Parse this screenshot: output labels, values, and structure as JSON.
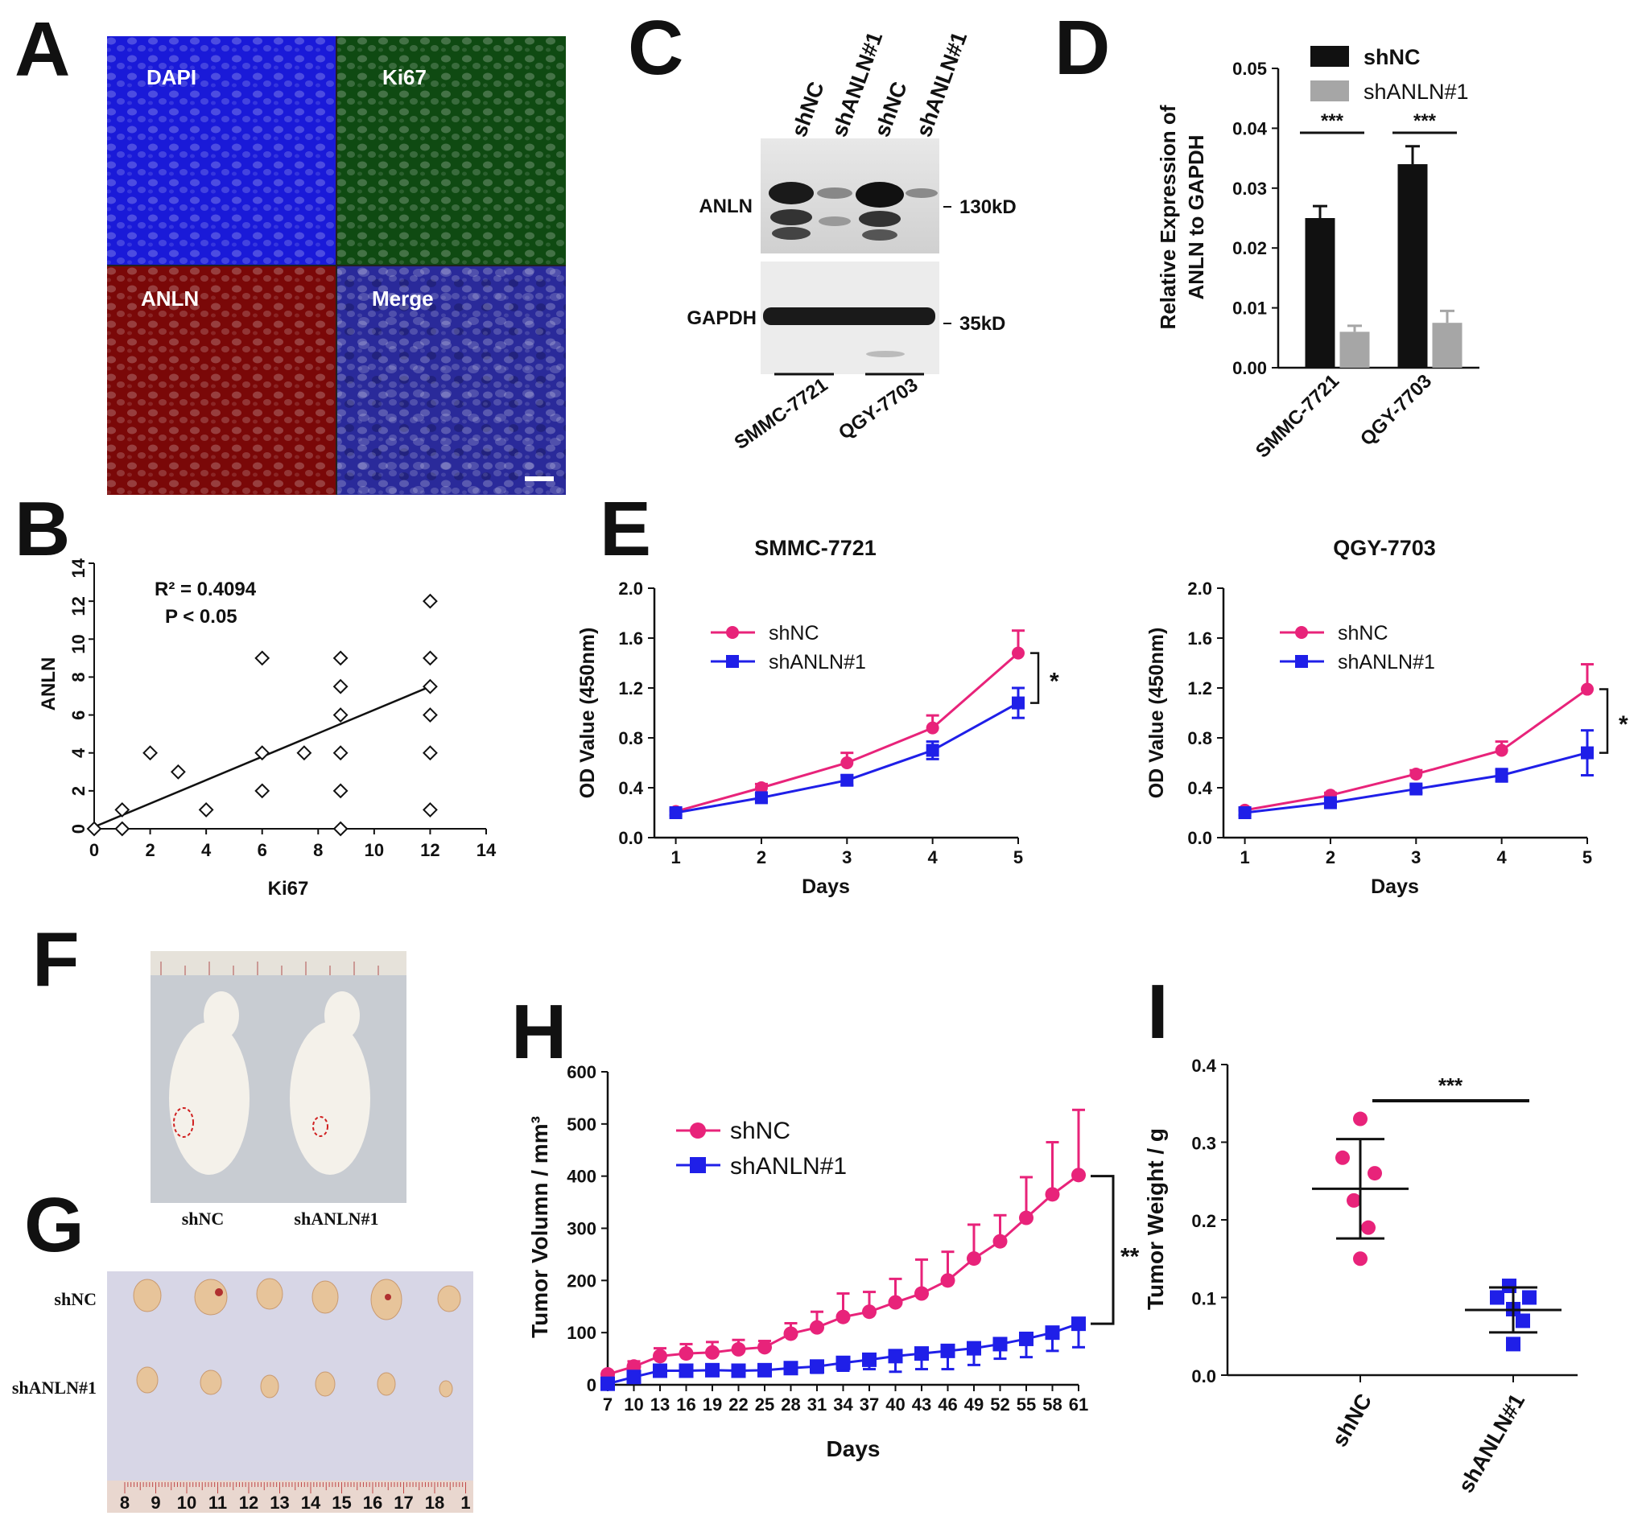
{
  "panel_labels": {
    "a": "A",
    "b": "B",
    "c": "C",
    "d": "D",
    "e": "E",
    "f": "F",
    "g": "G",
    "h": "H",
    "i": "I"
  },
  "colors": {
    "pink": "#e8237a",
    "blue": "#1f1fe8",
    "black": "#111111",
    "gray": "#a6a6a6",
    "dapi": "#1a1ad8",
    "ki67": "#1fa01f",
    "anln": "#c81414"
  },
  "panel_a": {
    "quadrants": [
      "DAPI",
      "Ki67",
      "ANLN",
      "Merge"
    ],
    "scale_bar": true
  },
  "panel_c": {
    "lanes": [
      "shNC",
      "shANLN#1",
      "shNC",
      "shANLN#1"
    ],
    "bands": [
      "ANLN",
      "GAPDH"
    ],
    "markers": [
      "130kD",
      "35kD"
    ],
    "cell_lines": [
      "SMMC-7721",
      "QGY-7703"
    ]
  },
  "panel_f": {
    "labels": [
      "shNC",
      "shANLN#1"
    ]
  },
  "panel_g": {
    "rows": [
      "shNC",
      "shANLN#1"
    ],
    "ruler_numbers": [
      "8",
      "9",
      "10",
      "11",
      "12",
      "13",
      "14",
      "15",
      "16",
      "17",
      "18",
      "1"
    ]
  },
  "chart_data": [
    {
      "id": "B",
      "type": "scatter",
      "xlabel": "Ki67",
      "ylabel": "ANLN",
      "xlim": [
        0,
        14
      ],
      "ylim": [
        0,
        14
      ],
      "xticks": [
        0,
        2,
        4,
        6,
        8,
        10,
        12,
        14
      ],
      "yticks": [
        0,
        2,
        4,
        6,
        8,
        10,
        12,
        14
      ],
      "points": [
        [
          0,
          0
        ],
        [
          1,
          0
        ],
        [
          1,
          1
        ],
        [
          2,
          4
        ],
        [
          3,
          3
        ],
        [
          4,
          1
        ],
        [
          6,
          9
        ],
        [
          6,
          4
        ],
        [
          6,
          2
        ],
        [
          7.5,
          4
        ],
        [
          8.8,
          9
        ],
        [
          8.8,
          7.5
        ],
        [
          8.8,
          6
        ],
        [
          8.8,
          4
        ],
        [
          8.8,
          2
        ],
        [
          8.8,
          0
        ],
        [
          12,
          12
        ],
        [
          12,
          9
        ],
        [
          12,
          7.5
        ],
        [
          12,
          6
        ],
        [
          12,
          4
        ],
        [
          12,
          1
        ]
      ],
      "fit": {
        "x": [
          0,
          12
        ],
        "y": [
          0.1,
          7.5
        ]
      },
      "annotations": [
        "R² = 0.4094",
        "P < 0.05"
      ]
    },
    {
      "id": "D",
      "type": "bar",
      "ylabel_lines": [
        "Relative Expression of",
        "ANLN to GAPDH"
      ],
      "categories": [
        "SMMC-7721",
        "QGY-7703"
      ],
      "series": [
        {
          "name": "shNC",
          "values": [
            0.025,
            0.034
          ],
          "errors": [
            0.002,
            0.003
          ]
        },
        {
          "name": "shANLN#1",
          "values": [
            0.006,
            0.0075
          ],
          "errors": [
            0.001,
            0.002
          ]
        }
      ],
      "ylim": [
        0,
        0.05
      ],
      "yticks": [
        "0.00",
        "0.01",
        "0.02",
        "0.03",
        "0.04",
        "0.05"
      ],
      "significance": [
        "***",
        "***"
      ]
    },
    {
      "id": "E1",
      "type": "line",
      "title": "SMMC-7721",
      "xlabel": "Days",
      "ylabel": "OD Value (450nm)",
      "x": [
        1,
        2,
        3,
        4,
        5
      ],
      "xlim": [
        0.75,
        5
      ],
      "ylim": [
        0,
        2.0
      ],
      "yticks": [
        "0.0",
        "0.4",
        "0.8",
        "1.2",
        "1.6",
        "2.0"
      ],
      "series": [
        {
          "name": "shNC",
          "values": [
            0.21,
            0.4,
            0.6,
            0.88,
            1.48
          ],
          "errors": [
            0.02,
            0.03,
            0.08,
            0.1,
            0.18
          ]
        },
        {
          "name": "shANLN#1",
          "values": [
            0.2,
            0.32,
            0.46,
            0.7,
            1.08
          ],
          "errors": [
            0.02,
            0.03,
            0.04,
            0.07,
            0.12
          ]
        }
      ],
      "significance": "*"
    },
    {
      "id": "E2",
      "type": "line",
      "title": "QGY-7703",
      "xlabel": "Days",
      "ylabel": "OD Value (450nm)",
      "x": [
        1,
        2,
        3,
        4,
        5
      ],
      "xlim": [
        0.75,
        5
      ],
      "ylim": [
        0,
        2.0
      ],
      "yticks": [
        "0.0",
        "0.4",
        "0.8",
        "1.2",
        "1.6",
        "2.0"
      ],
      "series": [
        {
          "name": "shNC",
          "values": [
            0.22,
            0.34,
            0.51,
            0.7,
            1.19
          ],
          "errors": [
            0.02,
            0.02,
            0.03,
            0.07,
            0.2
          ]
        },
        {
          "name": "shANLN#1",
          "values": [
            0.2,
            0.28,
            0.39,
            0.5,
            0.68
          ],
          "errors": [
            0.02,
            0.02,
            0.03,
            0.05,
            0.18
          ]
        }
      ],
      "significance": "*"
    },
    {
      "id": "H",
      "type": "line",
      "xlabel": "Days",
      "ylabel": "Tumor Volumn / mm³",
      "x": [
        7,
        10,
        13,
        16,
        19,
        22,
        25,
        28,
        31,
        34,
        37,
        40,
        43,
        46,
        49,
        52,
        55,
        58,
        61
      ],
      "ylim": [
        0,
        600
      ],
      "yticks": [
        0,
        100,
        200,
        300,
        400,
        500,
        600
      ],
      "series": [
        {
          "name": "shNC",
          "values": [
            20,
            35,
            55,
            60,
            62,
            68,
            72,
            98,
            110,
            130,
            140,
            158,
            175,
            200,
            242,
            275,
            320,
            365,
            402
          ],
          "errors": [
            5,
            10,
            15,
            18,
            20,
            18,
            12,
            20,
            30,
            45,
            38,
            45,
            65,
            55,
            65,
            50,
            78,
            100,
            125
          ]
        },
        {
          "name": "shANLN#1",
          "values": [
            2,
            15,
            27,
            27,
            28,
            27,
            28,
            32,
            35,
            42,
            48,
            55,
            60,
            65,
            70,
            78,
            88,
            100,
            117
          ],
          "errors": [
            3,
            5,
            8,
            8,
            8,
            8,
            10,
            10,
            12,
            15,
            18,
            30,
            30,
            35,
            32,
            28,
            35,
            35,
            45
          ]
        }
      ],
      "significance": "**"
    },
    {
      "id": "I",
      "type": "scatter",
      "ylabel": "Tumor Weight / g",
      "categories": [
        "shNC",
        "shANLN#1"
      ],
      "ylim": [
        0,
        0.4
      ],
      "yticks": [
        "0.0",
        "0.1",
        "0.2",
        "0.3",
        "0.4"
      ],
      "groups": [
        {
          "name": "shNC",
          "points": [
            0.33,
            0.28,
            0.26,
            0.225,
            0.19,
            0.15
          ],
          "mean": 0.24,
          "sd": 0.064
        },
        {
          "name": "shANLN#1",
          "points": [
            0.115,
            0.1,
            0.1,
            0.085,
            0.07,
            0.04
          ],
          "mean": 0.084,
          "sd": 0.029
        }
      ],
      "significance": "***"
    }
  ]
}
